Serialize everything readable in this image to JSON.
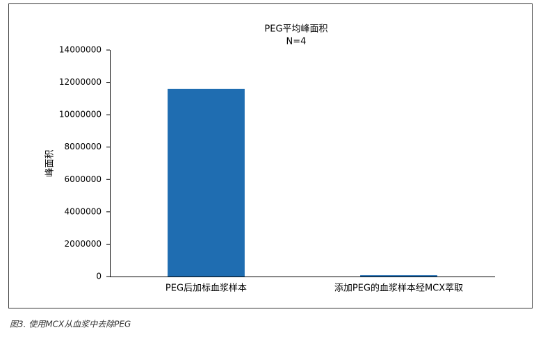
{
  "chart_data": {
    "type": "bar",
    "title": "PEG平均峰面积",
    "subtitle": "N=4",
    "y_label": "峰面积",
    "categories": [
      "PEG后加标血浆样本",
      "添加PEG的血浆样本经MCX萃取"
    ],
    "values": [
      11600000,
      80000
    ],
    "color": "#1f6db1",
    "ylim": [
      0,
      14000000
    ],
    "yticks": [
      0,
      2000000,
      4000000,
      6000000,
      8000000,
      10000000,
      12000000,
      14000000
    ],
    "grid": false,
    "caption": "图3. 使用MCX从血浆中去除PEG"
  }
}
